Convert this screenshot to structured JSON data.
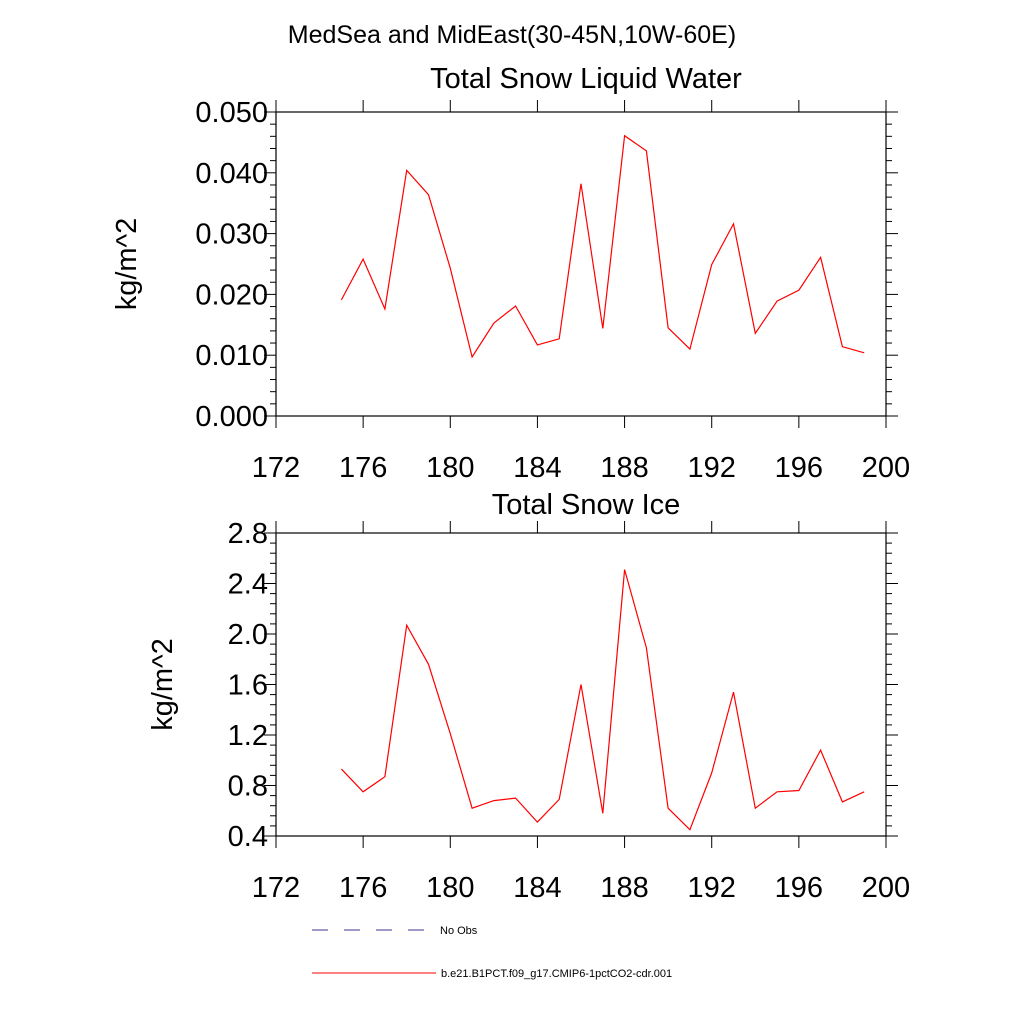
{
  "figure": {
    "suptitle": "MedSea and MidEast(30-45N,10W-60E)"
  },
  "chart_data": [
    {
      "type": "line",
      "title": "Total Snow Liquid Water",
      "xlabel": "",
      "ylabel": "kg/m^2",
      "xlim": [
        172,
        200
      ],
      "ylim": [
        0.0,
        0.05
      ],
      "xticks": [
        172,
        176,
        180,
        184,
        188,
        192,
        196,
        200
      ],
      "xtick_labels": [
        "172",
        "176",
        "180",
        "184",
        "188",
        "192",
        "196",
        "200"
      ],
      "yticks": [
        0.0,
        0.01,
        0.02,
        0.03,
        0.04,
        0.05
      ],
      "ytick_labels": [
        "0.000",
        "0.010",
        "0.020",
        "0.030",
        "0.040",
        "0.050"
      ],
      "grid": false,
      "x": [
        175,
        176,
        177,
        178,
        179,
        180,
        181,
        182,
        183,
        184,
        185,
        186,
        187,
        188,
        189,
        190,
        191,
        192,
        193,
        194,
        195,
        196,
        197,
        198,
        199
      ],
      "series": [
        {
          "name": "b.e21.B1PCT.f09_g17.CMIP6-1pctCO2-cdr.001",
          "color": "#ff0000",
          "values": [
            0.0191,
            0.0258,
            0.0176,
            0.0404,
            0.0364,
            0.0243,
            0.0097,
            0.0153,
            0.0181,
            0.0117,
            0.0127,
            0.0382,
            0.0144,
            0.0461,
            0.0436,
            0.0145,
            0.011,
            0.0249,
            0.0316,
            0.0136,
            0.0189,
            0.0207,
            0.0261,
            0.0114,
            0.0104
          ]
        }
      ]
    },
    {
      "type": "line",
      "title": "Total Snow Ice",
      "xlabel": "",
      "ylabel": "kg/m^2",
      "xlim": [
        172,
        200
      ],
      "ylim": [
        0.4,
        2.8
      ],
      "xticks": [
        172,
        176,
        180,
        184,
        188,
        192,
        196,
        200
      ],
      "xtick_labels": [
        "172",
        "176",
        "180",
        "184",
        "188",
        "192",
        "196",
        "200"
      ],
      "yticks": [
        0.4,
        0.8,
        1.2,
        1.6,
        2.0,
        2.4,
        2.8
      ],
      "ytick_labels": [
        "0.4",
        "0.8",
        "1.2",
        "1.6",
        "2.0",
        "2.4",
        "2.8"
      ],
      "grid": false,
      "x": [
        175,
        176,
        177,
        178,
        179,
        180,
        181,
        182,
        183,
        184,
        185,
        186,
        187,
        188,
        189,
        190,
        191,
        192,
        193,
        194,
        195,
        196,
        197,
        198,
        199
      ],
      "series": [
        {
          "name": "b.e21.B1PCT.f09_g17.CMIP6-1pctCO2-cdr.001",
          "color": "#ff0000",
          "values": [
            0.93,
            0.75,
            0.87,
            2.07,
            1.76,
            1.21,
            0.62,
            0.68,
            0.7,
            0.51,
            0.69,
            1.6,
            0.58,
            2.51,
            1.89,
            0.62,
            0.45,
            0.9,
            1.54,
            0.62,
            0.75,
            0.76,
            1.08,
            0.67,
            0.75
          ]
        }
      ]
    }
  ],
  "legend": {
    "placement": "bottom",
    "items": [
      {
        "label": "No Obs",
        "color": "#3a3a8c",
        "dash": true
      },
      {
        "label": "b.e21.B1PCT.f09_g17.CMIP6-1pctCO2-cdr.001",
        "color": "#ff0000",
        "dash": false
      }
    ]
  }
}
